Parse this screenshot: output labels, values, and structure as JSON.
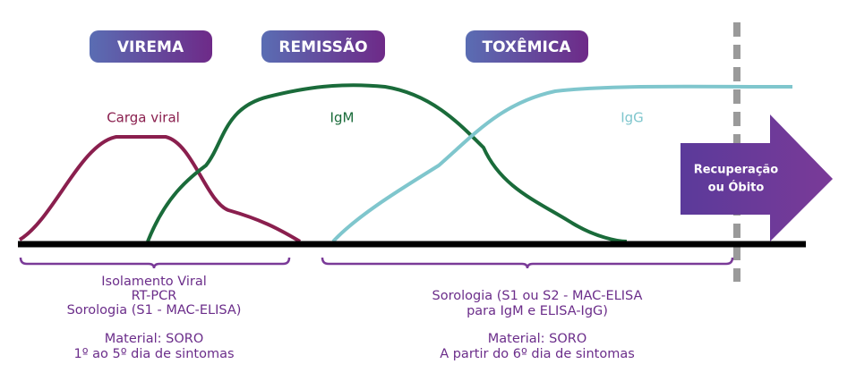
{
  "phases": [
    "VIREMA",
    "REMISSÃO",
    "TOXÊMICA"
  ],
  "curves": [
    "Carga viral",
    "IgM",
    "IgG"
  ],
  "outcome": [
    "Recuperação",
    "ou Óbito"
  ],
  "left": {
    "methods": [
      "Isolamento Viral",
      "RT-PCR",
      "Sorologia (S1 - MAC-ELISA)"
    ],
    "material": [
      "Material: SORO",
      "1º ao 5º dia de sintomas"
    ]
  },
  "right": {
    "methods": [
      "Sorologia (S1 ou S2 - MAC-ELISA",
      "para IgM e ELISA-IgG)"
    ],
    "material": [
      "Material: SORO",
      "A partir do 6º dia de sintomas"
    ]
  }
}
